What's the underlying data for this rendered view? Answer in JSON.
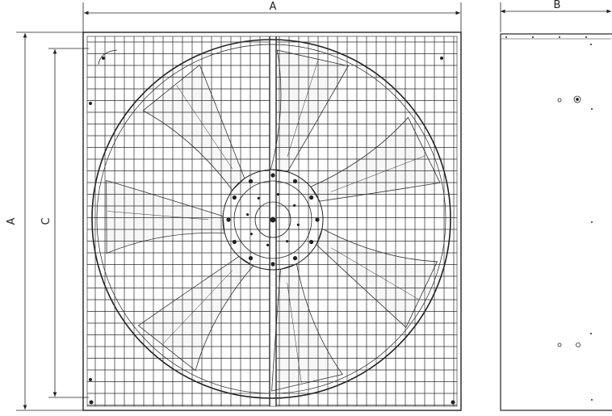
{
  "dimensions": {
    "front_width_label": "A",
    "front_height_label": "A",
    "grille_height_label": "C",
    "side_depth_label": "B"
  },
  "colors": {
    "line": "#222222",
    "background": "#ffffff"
  }
}
